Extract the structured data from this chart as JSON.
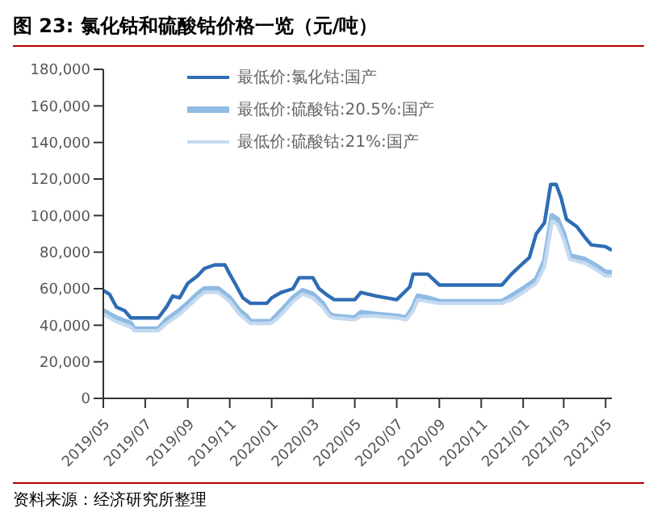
{
  "chart_data": {
    "type": "line",
    "title": "图 23: 氯化钴和硫酸钴价格一览（元/吨）",
    "annotations": [
      "资料来源：经济研究所整理"
    ],
    "legend": "top",
    "grid": false,
    "marker": "none",
    "line_style": "solid",
    "ylim": [
      0,
      180000
    ],
    "yticks": [
      0,
      {
        "value": 20000,
        "label": "20,000"
      },
      {
        "value": 40000,
        "label": "40,000"
      },
      {
        "value": 60000,
        "label": "60,000"
      },
      {
        "value": 80000,
        "label": "80,000"
      },
      {
        "value": 100000,
        "label": "100,000"
      },
      {
        "value": 120000,
        "label": "120,000"
      },
      {
        "value": 140000,
        "label": "140,000"
      },
      {
        "value": 160000,
        "label": "160,000"
      },
      {
        "value": 180000,
        "label": "180,000"
      }
    ],
    "xlim": [
      "2019-05-01",
      "2021-05-10"
    ],
    "xticks": [
      {
        "value": "2019-05",
        "label": "2019/05"
      },
      {
        "value": "2019-07",
        "label": "2019/07"
      },
      {
        "value": "2019-09",
        "label": "2019/09"
      },
      {
        "value": "2019-11",
        "label": "2019/11"
      },
      {
        "value": "2020-01",
        "label": "2020/01"
      },
      {
        "value": "2020-03",
        "label": "2020/03"
      },
      {
        "value": "2020-05",
        "label": "2020/05"
      },
      {
        "value": "2020-07",
        "label": "2020/07"
      },
      {
        "value": "2020-09",
        "label": "2020/09"
      },
      {
        "value": "2020-11",
        "label": "2020/11"
      },
      {
        "value": "2021-01",
        "label": "2021/01"
      },
      {
        "value": "2021-03",
        "label": "2021/03"
      },
      {
        "value": "2021-05",
        "label": "2021/05"
      }
    ],
    "series": [
      {
        "name": "最低价:氯化钴:国产",
        "color": "#2e6db4",
        "x": [
          "2019-05-01",
          "2019-05-10",
          "2019-05-20",
          "2019-06-01",
          "2019-06-10",
          "2019-07-20",
          "2019-08-01",
          "2019-08-10",
          "2019-08-20",
          "2019-09-01",
          "2019-09-15",
          "2019-09-25",
          "2019-10-10",
          "2019-10-25",
          "2019-11-01",
          "2019-11-10",
          "2019-11-20",
          "2019-12-01",
          "2019-12-25",
          "2020-01-01",
          "2020-01-15",
          "2020-02-01",
          "2020-02-10",
          "2020-03-01",
          "2020-03-10",
          "2020-03-20",
          "2020-04-01",
          "2020-05-01",
          "2020-05-10",
          "2020-06-01",
          "2020-07-01",
          "2020-07-20",
          "2020-07-25",
          "2020-08-15",
          "2020-09-01",
          "2020-12-01",
          "2020-12-15",
          "2021-01-01",
          "2021-01-10",
          "2021-01-20",
          "2021-02-01",
          "2021-02-10",
          "2021-02-18",
          "2021-02-25",
          "2021-03-05",
          "2021-03-20",
          "2021-04-01",
          "2021-04-10",
          "2021-05-01",
          "2021-05-10"
        ],
        "values": [
          59000,
          57000,
          50000,
          48000,
          44000,
          44000,
          50000,
          56000,
          55000,
          63000,
          67000,
          71000,
          73000,
          73000,
          68000,
          62000,
          55000,
          52000,
          52000,
          55000,
          58000,
          60000,
          66000,
          66000,
          60000,
          57000,
          54000,
          54000,
          58000,
          56000,
          54000,
          61000,
          68000,
          68000,
          62000,
          62000,
          68000,
          74000,
          77000,
          90000,
          96000,
          117000,
          117000,
          110000,
          98000,
          94000,
          88000,
          84000,
          83000,
          81000
        ]
      },
      {
        "name": "最低价:硫酸钴:20.5%:国产",
        "color": "#8fbbe3",
        "x": [
          "2019-05-01",
          "2019-05-20",
          "2019-06-10",
          "2019-06-15",
          "2019-07-20",
          "2019-08-01",
          "2019-08-20",
          "2019-09-01",
          "2019-09-15",
          "2019-09-25",
          "2019-10-15",
          "2019-11-01",
          "2019-11-15",
          "2019-11-25",
          "2019-12-01",
          "2019-12-31",
          "2020-01-10",
          "2020-01-25",
          "2020-02-01",
          "2020-02-15",
          "2020-03-01",
          "2020-03-15",
          "2020-03-25",
          "2020-04-01",
          "2020-05-01",
          "2020-05-10",
          "2020-06-01",
          "2020-07-01",
          "2020-07-15",
          "2020-07-25",
          "2020-08-01",
          "2020-08-15",
          "2020-09-01",
          "2020-12-01",
          "2020-12-15",
          "2021-01-01",
          "2021-01-20",
          "2021-02-01",
          "2021-02-12",
          "2021-02-20",
          "2021-03-01",
          "2021-03-10",
          "2021-04-01",
          "2021-04-15",
          "2021-05-01",
          "2021-05-10"
        ],
        "values": [
          48000,
          44000,
          41000,
          38000,
          38000,
          43000,
          48000,
          52000,
          57000,
          60000,
          60000,
          55000,
          48000,
          45000,
          42000,
          42000,
          46000,
          52000,
          55000,
          59000,
          57000,
          52000,
          46000,
          45000,
          44000,
          47000,
          46000,
          45000,
          44000,
          50000,
          56000,
          55000,
          53000,
          53000,
          56000,
          60000,
          65000,
          75000,
          100000,
          98000,
          90000,
          78000,
          76000,
          73000,
          69000,
          69000
        ]
      },
      {
        "name": "最低价:硫酸钴:21%:国产",
        "color": "#c5daf0",
        "x": [
          "2019-05-01",
          "2019-05-20",
          "2019-06-10",
          "2019-06-15",
          "2019-07-20",
          "2019-08-01",
          "2019-08-20",
          "2019-09-01",
          "2019-09-15",
          "2019-09-25",
          "2019-10-15",
          "2019-11-01",
          "2019-11-15",
          "2019-11-25",
          "2019-12-01",
          "2019-12-31",
          "2020-01-10",
          "2020-01-25",
          "2020-02-01",
          "2020-02-15",
          "2020-03-01",
          "2020-03-15",
          "2020-03-25",
          "2020-04-01",
          "2020-05-01",
          "2020-05-10",
          "2020-06-01",
          "2020-07-01",
          "2020-07-15",
          "2020-07-25",
          "2020-08-01",
          "2020-08-15",
          "2020-09-01",
          "2020-12-01",
          "2020-12-15",
          "2021-01-01",
          "2021-01-20",
          "2021-02-01",
          "2021-02-12",
          "2021-02-20",
          "2021-03-01",
          "2021-03-10",
          "2021-04-01",
          "2021-04-15",
          "2021-05-01",
          "2021-05-10"
        ],
        "values": [
          46000,
          42000,
          39000,
          37000,
          37000,
          41000,
          46000,
          50000,
          55000,
          58000,
          58000,
          53000,
          46000,
          43000,
          41000,
          41000,
          44000,
          50000,
          53000,
          57000,
          55000,
          50000,
          45000,
          44000,
          43000,
          45000,
          45000,
          44000,
          43000,
          48000,
          54000,
          53000,
          52000,
          52000,
          54000,
          58000,
          63000,
          72000,
          97000,
          95000,
          87000,
          76000,
          74000,
          71000,
          67000,
          67000
        ]
      }
    ]
  }
}
